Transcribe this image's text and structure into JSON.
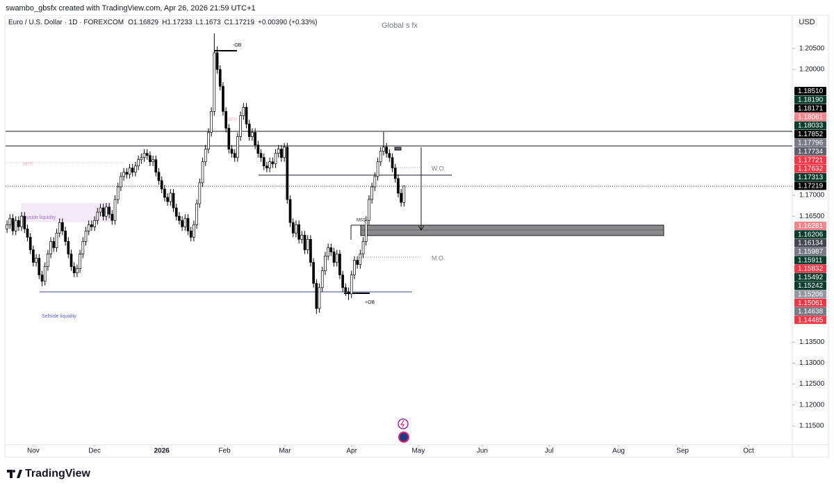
{
  "header": "swambo_gbsfx created with TradingView.com, Apr 26, 2026 21:59 UTC+1",
  "watermark": "Global s fx",
  "currency": "USD",
  "footer": "TradingView",
  "chart_data": {
    "type": "candlestick",
    "symbol": "Euro / U.S. Dollar · 1D · FOREXCOM",
    "legend_prefixes": [
      "O",
      "H",
      "L",
      "C"
    ],
    "change": "+0.00390 (+0.33%)",
    "up_color": "#ffffff",
    "down_color": "#000000",
    "ohlc": [
      [
        1.162,
        1.164,
        1.161,
        1.163
      ],
      [
        1.163,
        1.1655,
        1.162,
        1.1645
      ],
      [
        1.1645,
        1.1655,
        1.1605,
        1.1615
      ],
      [
        1.1615,
        1.165,
        1.1605,
        1.164
      ],
      [
        1.164,
        1.165,
        1.1615,
        1.1625
      ],
      [
        1.1625,
        1.166,
        1.1615,
        1.165
      ],
      [
        1.165,
        1.166,
        1.161,
        1.162
      ],
      [
        1.162,
        1.163,
        1.159,
        1.16
      ],
      [
        1.16,
        1.161,
        1.156,
        1.157
      ],
      [
        1.157,
        1.158,
        1.153,
        1.154
      ],
      [
        1.154,
        1.156,
        1.153,
        1.155
      ],
      [
        1.155,
        1.156,
        1.15,
        1.151
      ],
      [
        1.151,
        1.152,
        1.1483,
        1.1495
      ],
      [
        1.1495,
        1.154,
        1.1485,
        1.153
      ],
      [
        1.153,
        1.157,
        1.152,
        1.156
      ],
      [
        1.156,
        1.16,
        1.155,
        1.159
      ],
      [
        1.159,
        1.16,
        1.1565,
        1.1575
      ],
      [
        1.1575,
        1.162,
        1.1565,
        1.161
      ],
      [
        1.161,
        1.1645,
        1.16,
        1.1635
      ],
      [
        1.1635,
        1.1645,
        1.1605,
        1.1615
      ],
      [
        1.1615,
        1.1625,
        1.158,
        1.159
      ],
      [
        1.159,
        1.16,
        1.155,
        1.156
      ],
      [
        1.156,
        1.157,
        1.152,
        1.153
      ],
      [
        1.153,
        1.154,
        1.1505,
        1.1515
      ],
      [
        1.1515,
        1.1535,
        1.1505,
        1.1525
      ],
      [
        1.1525,
        1.157,
        1.1515,
        1.156
      ],
      [
        1.156,
        1.16,
        1.155,
        1.159
      ],
      [
        1.159,
        1.1625,
        1.158,
        1.1615
      ],
      [
        1.1615,
        1.164,
        1.1605,
        1.163
      ],
      [
        1.163,
        1.164,
        1.1615,
        1.1625
      ],
      [
        1.1625,
        1.165,
        1.1615,
        1.164
      ],
      [
        1.164,
        1.167,
        1.163,
        1.166
      ],
      [
        1.166,
        1.168,
        1.165,
        1.167
      ],
      [
        1.167,
        1.168,
        1.164,
        1.165
      ],
      [
        1.165,
        1.1682,
        1.164,
        1.1672
      ],
      [
        1.1672,
        1.1682,
        1.1645,
        1.1655
      ],
      [
        1.1655,
        1.1665,
        1.163,
        1.164
      ],
      [
        1.164,
        1.17,
        1.163,
        1.169
      ],
      [
        1.169,
        1.173,
        1.168,
        1.172
      ],
      [
        1.172,
        1.1755,
        1.171,
        1.1745
      ],
      [
        1.1745,
        1.1765,
        1.1735,
        1.1755
      ],
      [
        1.1755,
        1.1765,
        1.174,
        1.175
      ],
      [
        1.175,
        1.1775,
        1.174,
        1.1765
      ],
      [
        1.1765,
        1.1775,
        1.1745,
        1.1755
      ],
      [
        1.1755,
        1.178,
        1.1745,
        1.177
      ],
      [
        1.177,
        1.1795,
        1.176,
        1.1785
      ],
      [
        1.1785,
        1.18,
        1.1775,
        1.179
      ],
      [
        1.179,
        1.181,
        1.178,
        1.18
      ],
      [
        1.18,
        1.181,
        1.1785,
        1.1795
      ],
      [
        1.1795,
        1.1805,
        1.177,
        1.178
      ],
      [
        1.178,
        1.1795,
        1.177,
        1.1785
      ],
      [
        1.1785,
        1.1795,
        1.1745,
        1.1755
      ],
      [
        1.1755,
        1.1765,
        1.1725,
        1.1735
      ],
      [
        1.1735,
        1.1745,
        1.1705,
        1.1715
      ],
      [
        1.1715,
        1.1725,
        1.1685,
        1.1695
      ],
      [
        1.1695,
        1.1705,
        1.1675,
        1.1685
      ],
      [
        1.1685,
        1.1715,
        1.1675,
        1.1705
      ],
      [
        1.1705,
        1.1715,
        1.166,
        1.167
      ],
      [
        1.167,
        1.168,
        1.164,
        1.165
      ],
      [
        1.165,
        1.166,
        1.163,
        1.164
      ],
      [
        1.164,
        1.165,
        1.1615,
        1.1625
      ],
      [
        1.1625,
        1.1655,
        1.1615,
        1.1645
      ],
      [
        1.1645,
        1.1655,
        1.1605,
        1.1615
      ],
      [
        1.1615,
        1.1625,
        1.159,
        1.16
      ],
      [
        1.16,
        1.164,
        1.159,
        1.163
      ],
      [
        1.163,
        1.169,
        1.162,
        1.168
      ],
      [
        1.168,
        1.174,
        1.167,
        1.173
      ],
      [
        1.173,
        1.179,
        1.172,
        1.178
      ],
      [
        1.178,
        1.182,
        1.177,
        1.181
      ],
      [
        1.181,
        1.186,
        1.18,
        1.185
      ],
      [
        1.185,
        1.191,
        1.184,
        1.19
      ],
      [
        1.19,
        1.2086,
        1.189,
        1.204
      ],
      [
        1.204,
        1.2055,
        1.199,
        1.2
      ],
      [
        1.2,
        1.201,
        1.195,
        1.196
      ],
      [
        1.196,
        1.197,
        1.189,
        1.19
      ],
      [
        1.19,
        1.191,
        1.185,
        1.186
      ],
      [
        1.186,
        1.187,
        1.18,
        1.181
      ],
      [
        1.181,
        1.182,
        1.179,
        1.18
      ],
      [
        1.18,
        1.181,
        1.178,
        1.179
      ],
      [
        1.179,
        1.185,
        1.178,
        1.184
      ],
      [
        1.184,
        1.19,
        1.183,
        1.189
      ],
      [
        1.189,
        1.192,
        1.188,
        1.191
      ],
      [
        1.191,
        1.192,
        1.186,
        1.187
      ],
      [
        1.187,
        1.188,
        1.183,
        1.184
      ],
      [
        1.184,
        1.186,
        1.183,
        1.185
      ],
      [
        1.185,
        1.186,
        1.181,
        1.182
      ],
      [
        1.182,
        1.183,
        1.179,
        1.18
      ],
      [
        1.18,
        1.181,
        1.178,
        1.179
      ],
      [
        1.179,
        1.18,
        1.176,
        1.177
      ],
      [
        1.177,
        1.178,
        1.1755,
        1.1765
      ],
      [
        1.1765,
        1.179,
        1.1755,
        1.178
      ],
      [
        1.178,
        1.179,
        1.1765,
        1.1775
      ],
      [
        1.1775,
        1.181,
        1.1765,
        1.18
      ],
      [
        1.18,
        1.182,
        1.179,
        1.181
      ],
      [
        1.181,
        1.182,
        1.178,
        1.179
      ],
      [
        1.179,
        1.1825,
        1.178,
        1.1815
      ],
      [
        1.1815,
        1.1825,
        1.168,
        1.169
      ],
      [
        1.169,
        1.17,
        1.1625,
        1.1635
      ],
      [
        1.1635,
        1.1645,
        1.16,
        1.161
      ],
      [
        1.161,
        1.164,
        1.16,
        1.163
      ],
      [
        1.163,
        1.164,
        1.1585,
        1.1595
      ],
      [
        1.1595,
        1.1615,
        1.1585,
        1.1605
      ],
      [
        1.1605,
        1.1615,
        1.156,
        1.157
      ],
      [
        1.157,
        1.1605,
        1.156,
        1.1595
      ],
      [
        1.1595,
        1.1605,
        1.153,
        1.154
      ],
      [
        1.154,
        1.155,
        1.148,
        1.149
      ],
      [
        1.149,
        1.15,
        1.1417,
        1.143
      ],
      [
        1.143,
        1.149,
        1.142,
        1.148
      ],
      [
        1.148,
        1.153,
        1.147,
        1.152
      ],
      [
        1.152,
        1.1565,
        1.151,
        1.1555
      ],
      [
        1.1555,
        1.1585,
        1.1545,
        1.1575
      ],
      [
        1.1575,
        1.1585,
        1.1555,
        1.1565
      ],
      [
        1.1565,
        1.1575,
        1.153,
        1.154
      ],
      [
        1.154,
        1.157,
        1.153,
        1.156
      ],
      [
        1.156,
        1.157,
        1.15,
        1.151
      ],
      [
        1.151,
        1.152,
        1.147,
        1.148
      ],
      [
        1.148,
        1.149,
        1.146,
        1.147
      ],
      [
        1.147,
        1.148,
        1.145,
        1.1465
      ],
      [
        1.1465,
        1.152,
        1.1455,
        1.151
      ],
      [
        1.151,
        1.1555,
        1.15,
        1.1545
      ],
      [
        1.1545,
        1.1555,
        1.1525,
        1.1535
      ],
      [
        1.1535,
        1.157,
        1.1525,
        1.156
      ],
      [
        1.156,
        1.16,
        1.155,
        1.159
      ],
      [
        1.159,
        1.165,
        1.158,
        1.164
      ],
      [
        1.164,
        1.17,
        1.163,
        1.169
      ],
      [
        1.169,
        1.173,
        1.168,
        1.172
      ],
      [
        1.172,
        1.1755,
        1.171,
        1.1745
      ],
      [
        1.1745,
        1.179,
        1.1735,
        1.178
      ],
      [
        1.178,
        1.1815,
        1.177,
        1.1805
      ],
      [
        1.1805,
        1.1851,
        1.1795,
        1.1815
      ],
      [
        1.1815,
        1.1825,
        1.179,
        1.18
      ],
      [
        1.18,
        1.181,
        1.178,
        1.179
      ],
      [
        1.179,
        1.18,
        1.1755,
        1.1765
      ],
      [
        1.1765,
        1.1775,
        1.173,
        1.174
      ],
      [
        1.174,
        1.175,
        1.1695,
        1.1705
      ],
      [
        1.1705,
        1.1715,
        1.1673,
        1.1683
      ],
      [
        1.16829,
        1.17233,
        1.1673,
        1.17219
      ]
    ],
    "xlim": [
      -0.5,
      269
    ],
    "xticks": [
      {
        "value": 9,
        "label": "Nov"
      },
      {
        "value": 30,
        "label": "Dec"
      },
      {
        "value": 53,
        "label": "2026"
      },
      {
        "value": 74.5,
        "label": "Feb"
      },
      {
        "value": 95.2,
        "label": "Mar"
      },
      {
        "value": 118.1,
        "label": "Apr"
      },
      {
        "value": 140.9,
        "label": "May"
      },
      {
        "value": 162.8,
        "label": "Jun"
      },
      {
        "value": 185.7,
        "label": "Jul"
      },
      {
        "value": 209.5,
        "label": "Aug"
      },
      {
        "value": 231.4,
        "label": "Sep"
      },
      {
        "value": 254,
        "label": "Oct"
      }
    ],
    "ylim": [
      1.11051,
      1.21293
    ],
    "yticks": [
      {
        "value": 1.205,
        "label": "1.20500"
      },
      {
        "value": 1.2,
        "label": "1.20000"
      },
      {
        "value": 1.17,
        "label": "1.17000"
      },
      {
        "value": 1.165,
        "label": "1.16500"
      },
      {
        "value": 1.135,
        "label": "1.13500"
      },
      {
        "value": 1.13,
        "label": "1.13000"
      },
      {
        "value": 1.125,
        "label": "1.12500"
      },
      {
        "value": 1.12,
        "label": "1.12000"
      },
      {
        "value": 1.115,
        "label": "1.11500"
      }
    ],
    "price_tags": [
      {
        "value": 1.1851,
        "label": "1.18510",
        "color": "#000000"
      },
      {
        "value": 1.1819,
        "label": "1.18190",
        "color": "#0b3d2e"
      },
      {
        "value": 1.18171,
        "label": "1.18171",
        "color": "#000000"
      },
      {
        "value": 1.18061,
        "label": "1.18061",
        "color": "#f7868a"
      },
      {
        "value": 1.18033,
        "label": "1.18033",
        "color": "#0b3d2e"
      },
      {
        "value": 1.17852,
        "label": "1.17852",
        "color": "#000000"
      },
      {
        "value": 1.17796,
        "label": "1.17796",
        "color": "#787b86"
      },
      {
        "value": 1.17734,
        "label": "1.17734",
        "color": "#5d606b"
      },
      {
        "value": 1.17721,
        "label": "1.17721",
        "color": "#f23645"
      },
      {
        "value": 1.17632,
        "label": "1.17632",
        "color": "#f23645"
      },
      {
        "value": 1.17313,
        "label": "1.17313",
        "color": "#0b3d2e"
      },
      {
        "value": 1.17219,
        "label": "1.17219",
        "color": "#000000"
      },
      {
        "value": 1.16281,
        "label": "1.16281",
        "color": "#f7868a"
      },
      {
        "value": 1.16206,
        "label": "1.16206",
        "color": "#0b3d2e"
      },
      {
        "value": 1.16134,
        "label": "1.16134",
        "color": "#434651"
      },
      {
        "value": 1.15987,
        "label": "1.15987",
        "color": "#787b86"
      },
      {
        "value": 1.15911,
        "label": "1.15911",
        "color": "#0b3d2e"
      },
      {
        "value": 1.15832,
        "label": "1.15832",
        "color": "#f23645"
      },
      {
        "value": 1.15492,
        "label": "1.15492",
        "color": "#0b3d2e"
      },
      {
        "value": 1.15242,
        "label": "1.15242",
        "color": "#0b3d2e"
      },
      {
        "value": 1.15206,
        "label": "1.15206",
        "color": "#9598a1"
      },
      {
        "value": 1.15061,
        "label": "1.15061",
        "color": "#f23645"
      },
      {
        "value": 1.14638,
        "label": "1.14638",
        "color": "#787b86"
      },
      {
        "value": 1.14485,
        "label": "1.14485",
        "color": "#f23645"
      }
    ],
    "annotations": {
      "ob_top": "-OB",
      "ob_bottom": "+OB",
      "bpr_left": "BPR",
      "bpr_top": "BPR",
      "wo": "W.O.",
      "mo": "M.O.",
      "buyside": "Buyside liquidity",
      "sellside": "Sellside liquidity",
      "mss": "MSS"
    }
  }
}
